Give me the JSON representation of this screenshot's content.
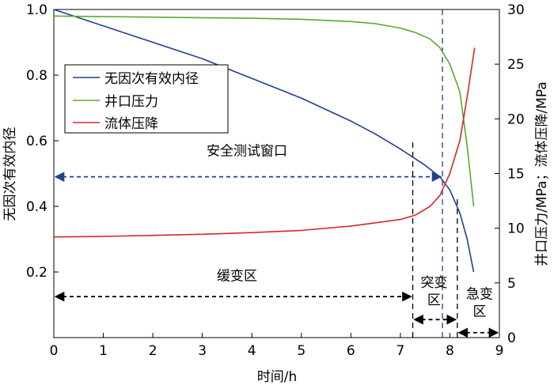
{
  "chart_data": {
    "type": "line",
    "xlabel": "时间/h",
    "ylabel_left": "无因次有效内径",
    "ylabel_right": "井口压力/MPa；流体压降/MPa",
    "xlim": [
      0,
      9
    ],
    "ylim_left": [
      0,
      1.0
    ],
    "ylim_right": [
      0,
      30
    ],
    "x_ticks": [
      "0",
      "1",
      "2",
      "3",
      "4",
      "5",
      "6",
      "7",
      "8",
      "9"
    ],
    "y_left_ticks": [
      "0.2",
      "0.4",
      "0.6",
      "0.8",
      "1.0"
    ],
    "y_right_ticks": [
      "0",
      "5",
      "10",
      "15",
      "20",
      "25",
      "30"
    ],
    "legend_position": "top-left",
    "grid": false,
    "series": [
      {
        "name": "无因次有效内径",
        "axis": "left",
        "color": "#1f3f8f",
        "x": [
          0,
          0.5,
          1,
          1.5,
          2,
          2.5,
          3,
          3.5,
          4,
          4.5,
          5,
          5.5,
          6,
          6.5,
          7,
          7.5,
          7.8,
          8.0,
          8.2,
          8.35,
          8.48
        ],
        "y": [
          1.0,
          0.975,
          0.95,
          0.925,
          0.9,
          0.875,
          0.85,
          0.82,
          0.79,
          0.76,
          0.73,
          0.695,
          0.66,
          0.62,
          0.575,
          0.525,
          0.49,
          0.45,
          0.38,
          0.3,
          0.2
        ]
      },
      {
        "name": "井口压力",
        "axis": "right",
        "color": "#5aa832",
        "x": [
          0,
          1,
          2,
          3,
          4,
          5,
          6,
          6.5,
          7,
          7.3,
          7.6,
          7.8,
          8.0,
          8.2,
          8.35,
          8.48
        ],
        "y": [
          29.4,
          29.35,
          29.3,
          29.25,
          29.2,
          29.1,
          28.9,
          28.7,
          28.3,
          27.9,
          27.3,
          26.5,
          25.0,
          22.5,
          17.5,
          12.0
        ]
      },
      {
        "name": "流体压降",
        "axis": "right",
        "color": "#d62728",
        "x": [
          0,
          1,
          2,
          3,
          4,
          5,
          6,
          6.5,
          7,
          7.3,
          7.6,
          7.8,
          8.0,
          8.2,
          8.35,
          8.5
        ],
        "y": [
          9.2,
          9.25,
          9.35,
          9.45,
          9.6,
          9.8,
          10.2,
          10.5,
          10.8,
          11.2,
          12.0,
          13.0,
          15.0,
          18.0,
          22.0,
          26.5
        ]
      }
    ],
    "reference_lines": [
      {
        "axis": "x",
        "value": 7.25,
        "style": "dashed",
        "color": "#000000",
        "y_top": 0.6
      },
      {
        "axis": "x",
        "value": 8.15,
        "style": "dashed",
        "color": "#000000",
        "y_top": 0.43
      },
      {
        "axis": "x",
        "value": 7.85,
        "style": "dashed",
        "color": "#1f3f8f",
        "y_top": 1.0
      }
    ],
    "annotations": [
      {
        "text": "安全测试窗口",
        "type": "arrow",
        "x_from": 0,
        "x_to": 7.85,
        "y": 0.49,
        "color": "#1f3f8f",
        "label_x": 3.9,
        "label_y": 0.555
      },
      {
        "text": "缓变区",
        "type": "arrow",
        "x_from": 0,
        "x_to": 7.25,
        "y": 0.125,
        "color": "#000000",
        "label_x": 3.7,
        "label_y": 0.175
      },
      {
        "text": "突变区",
        "type": "arrow",
        "x_from": 7.25,
        "x_to": 8.15,
        "y": 0.055,
        "color": "#000000",
        "label_x": 7.68,
        "label_y": 0.125
      },
      {
        "text": "急变区",
        "type": "arrow",
        "x_from": 8.15,
        "x_to": 9.0,
        "y": 0.015,
        "color": "#000000",
        "label_x": 8.6,
        "label_y": 0.09
      }
    ]
  }
}
